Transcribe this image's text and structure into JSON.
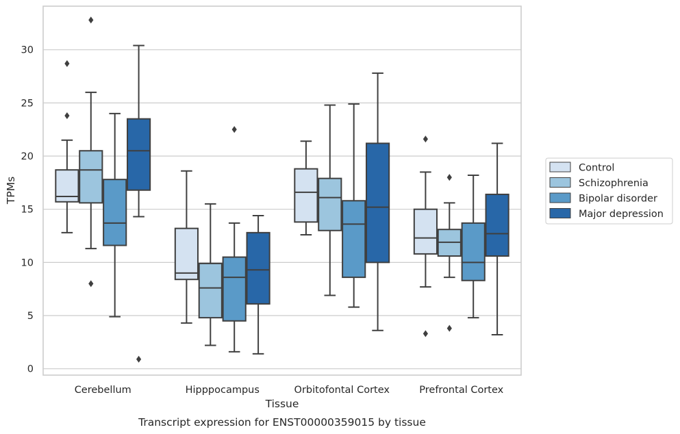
{
  "chart_data": {
    "type": "box",
    "title": "",
    "caption": "Transcript expression for ENST00000359015 by tissue",
    "xlabel": "Tissue",
    "ylabel": "TPMs",
    "ylim": [
      -0.6,
      34.1
    ],
    "yticks": [
      0,
      5,
      10,
      15,
      20,
      25,
      30
    ],
    "grid": "horizontal",
    "legend_position": "right",
    "categories": [
      "Cerebellum",
      "Hipppocampus",
      "Orbitofontal Cortex",
      "Prefrontal Cortex"
    ],
    "series": [
      {
        "name": "Control",
        "color": "#d4e2f1",
        "boxes": [
          {
            "whisker_low": 12.8,
            "q1": 15.7,
            "median": 16.2,
            "q3": 18.7,
            "whisker_high": 21.5,
            "outliers": [
              23.8,
              28.7
            ]
          },
          {
            "whisker_low": 4.3,
            "q1": 8.4,
            "median": 9.0,
            "q3": 13.2,
            "whisker_high": 18.6,
            "outliers": []
          },
          {
            "whisker_low": 12.6,
            "q1": 13.8,
            "median": 16.6,
            "q3": 18.8,
            "whisker_high": 21.4,
            "outliers": []
          },
          {
            "whisker_low": 7.7,
            "q1": 10.8,
            "median": 12.3,
            "q3": 15.0,
            "whisker_high": 18.5,
            "outliers": [
              3.3,
              21.6
            ]
          }
        ]
      },
      {
        "name": "Schizophrenia",
        "color": "#9cc5de",
        "boxes": [
          {
            "whisker_low": 11.3,
            "q1": 15.6,
            "median": 18.7,
            "q3": 20.5,
            "whisker_high": 26.0,
            "outliers": [
              8.0,
              32.8
            ]
          },
          {
            "whisker_low": 2.2,
            "q1": 4.8,
            "median": 7.6,
            "q3": 9.9,
            "whisker_high": 15.5,
            "outliers": []
          },
          {
            "whisker_low": 6.9,
            "q1": 13.0,
            "median": 16.1,
            "q3": 17.9,
            "whisker_high": 24.8,
            "outliers": []
          },
          {
            "whisker_low": 8.6,
            "q1": 10.6,
            "median": 11.9,
            "q3": 13.1,
            "whisker_high": 15.6,
            "outliers": [
              3.8,
              18.0
            ]
          }
        ]
      },
      {
        "name": "Bipolar disorder",
        "color": "#5a9ac8",
        "boxes": [
          {
            "whisker_low": 4.9,
            "q1": 11.6,
            "median": 13.7,
            "q3": 17.8,
            "whisker_high": 24.0,
            "outliers": []
          },
          {
            "whisker_low": 1.6,
            "q1": 4.5,
            "median": 8.6,
            "q3": 10.5,
            "whisker_high": 13.7,
            "outliers": [
              22.5
            ]
          },
          {
            "whisker_low": 5.8,
            "q1": 8.6,
            "median": 13.6,
            "q3": 15.8,
            "whisker_high": 24.9,
            "outliers": []
          },
          {
            "whisker_low": 4.8,
            "q1": 8.3,
            "median": 10.0,
            "q3": 13.7,
            "whisker_high": 18.2,
            "outliers": []
          }
        ]
      },
      {
        "name": "Major depression",
        "color": "#2867a8",
        "boxes": [
          {
            "whisker_low": 14.3,
            "q1": 16.8,
            "median": 20.5,
            "q3": 23.5,
            "whisker_high": 30.4,
            "outliers": [
              0.9
            ]
          },
          {
            "whisker_low": 1.4,
            "q1": 6.1,
            "median": 9.3,
            "q3": 12.8,
            "whisker_high": 14.4,
            "outliers": []
          },
          {
            "whisker_low": 3.6,
            "q1": 10.0,
            "median": 15.2,
            "q3": 21.2,
            "whisker_high": 27.8,
            "outliers": []
          },
          {
            "whisker_low": 3.2,
            "q1": 10.6,
            "median": 12.7,
            "q3": 16.4,
            "whisker_high": 21.2,
            "outliers": []
          }
        ]
      }
    ]
  }
}
